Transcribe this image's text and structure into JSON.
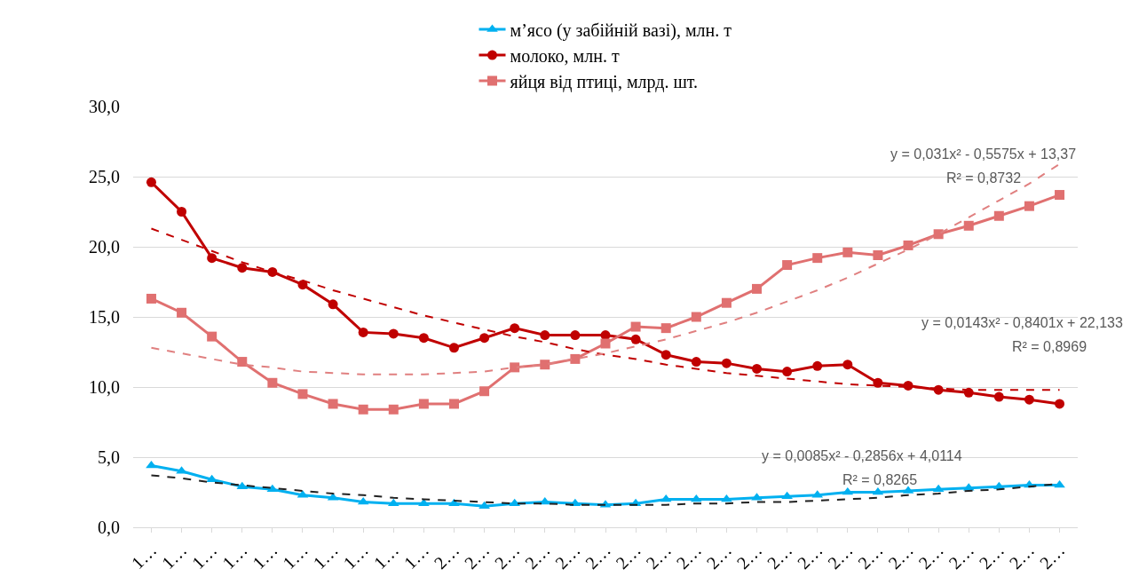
{
  "chart_data": {
    "type": "line",
    "categories": [
      "1…",
      "1…",
      "1…",
      "1…",
      "1…",
      "1…",
      "1…",
      "1…",
      "1…",
      "1…",
      "2…",
      "2…",
      "2…",
      "2…",
      "2…",
      "2…",
      "2…",
      "2…",
      "2…",
      "2…",
      "2…",
      "2…",
      "2…",
      "2…",
      "2…",
      "2…",
      "2…",
      "2…",
      "2…",
      "2…",
      "2…"
    ],
    "series": [
      {
        "name": "м’ясо (у забійній вазі), млн. т",
        "color": "#00b0f0",
        "marker": "triangle",
        "line_style": "solid",
        "values": [
          4.4,
          4.0,
          3.4,
          2.9,
          2.7,
          2.3,
          2.1,
          1.8,
          1.7,
          1.7,
          1.7,
          1.5,
          1.7,
          1.8,
          1.7,
          1.6,
          1.7,
          2.0,
          2.0,
          2.0,
          2.1,
          2.2,
          2.3,
          2.5,
          2.5,
          2.6,
          2.7,
          2.8,
          2.9,
          3.0,
          3.0
        ]
      },
      {
        "name": "молоко, млн. т",
        "color": "#c00000",
        "marker": "circle",
        "line_style": "solid",
        "values": [
          24.6,
          22.5,
          19.2,
          18.5,
          18.2,
          17.3,
          15.9,
          13.9,
          13.8,
          13.5,
          12.8,
          13.5,
          14.2,
          13.7,
          13.7,
          13.7,
          13.4,
          12.3,
          11.8,
          11.7,
          11.3,
          11.1,
          11.5,
          11.6,
          10.3,
          10.1,
          9.8,
          9.6,
          9.3,
          9.1,
          8.8
        ]
      },
      {
        "name": "яйця від птиці, млрд. шт.",
        "color": "#e07070",
        "marker": "square",
        "line_style": "solid",
        "values": [
          16.3,
          15.3,
          13.6,
          11.8,
          10.3,
          9.5,
          8.8,
          8.4,
          8.4,
          8.8,
          8.8,
          9.7,
          11.4,
          11.6,
          12.0,
          13.1,
          14.3,
          14.2,
          15.0,
          16.0,
          17.0,
          18.7,
          19.2,
          19.6,
          19.4,
          20.1,
          20.9,
          21.5,
          22.2,
          22.9,
          23.7
        ]
      },
      {
        "type": "line",
        "color": "#222222",
        "marker": "none",
        "line_style": "dashed",
        "values": [
          3.7,
          3.5,
          3.2,
          3.0,
          2.8,
          2.6,
          2.4,
          2.3,
          2.1,
          2.0,
          1.9,
          1.8,
          1.7,
          1.7,
          1.6,
          1.6,
          1.6,
          1.6,
          1.7,
          1.7,
          1.8,
          1.8,
          1.9,
          2.0,
          2.1,
          2.3,
          2.4,
          2.6,
          2.7,
          2.9,
          3.1
        ]
      },
      {
        "type": "line",
        "color": "#c00000",
        "marker": "none",
        "line_style": "dashed",
        "values": [
          21.3,
          20.5,
          19.7,
          18.9,
          18.2,
          17.6,
          16.9,
          16.3,
          15.7,
          15.1,
          14.6,
          14.1,
          13.6,
          13.2,
          12.7,
          12.3,
          12.0,
          11.6,
          11.3,
          11.0,
          10.8,
          10.6,
          10.4,
          10.2,
          10.1,
          10.0,
          9.9,
          9.8,
          9.8,
          9.8,
          9.8
        ]
      },
      {
        "type": "line",
        "color": "#e08080",
        "marker": "none",
        "line_style": "dashed",
        "values": [
          12.8,
          12.4,
          12.0,
          11.6,
          11.4,
          11.1,
          11.0,
          10.9,
          10.9,
          10.9,
          11.0,
          11.1,
          11.4,
          11.6,
          12.0,
          12.4,
          12.9,
          13.4,
          14.0,
          14.6,
          15.3,
          16.1,
          16.9,
          17.8,
          18.8,
          19.8,
          20.9,
          22.1,
          23.3,
          24.5,
          25.9
        ]
      }
    ],
    "ylim": [
      0,
      30
    ],
    "yticks": [
      {
        "value": 0,
        "label": "0,0"
      },
      {
        "value": 5,
        "label": "5,0"
      },
      {
        "value": 10,
        "label": "10,0"
      },
      {
        "value": 15,
        "label": "15,0"
      },
      {
        "value": 20,
        "label": "20,0"
      },
      {
        "value": 25,
        "label": "25,0"
      },
      {
        "value": 30,
        "label": "30,0"
      }
    ],
    "grid": "y",
    "legend": "top",
    "annotations": [
      "y = 0,031x² - 0,5575x + 13,37",
      "R² = 0,8732",
      "y = 0,0143x² - 0,8401x + 22,133",
      "R² = 0,8969",
      "y = 0,0085x² - 0,2856x + 4,0114",
      "R² = 0,8265"
    ]
  }
}
